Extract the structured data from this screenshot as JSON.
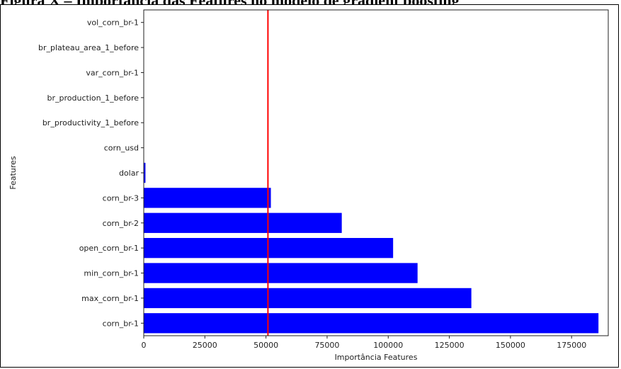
{
  "figure": {
    "caption": "Figura X – Importância das Features no modelo de gradient boosting"
  },
  "chart_data": {
    "type": "bar",
    "orientation": "horizontal",
    "title": "",
    "xlabel": "Importância Features",
    "ylabel": "Features",
    "categories": [
      "vol_corn_br-1",
      "br_plateau_area_1_before",
      "var_corn_br-1",
      "br_production_1_before",
      "br_productivity_1_before",
      "corn_usd",
      "dolar",
      "corn_br-3",
      "corn_br-2",
      "open_corn_br-1",
      "min_corn_br-1",
      "max_corn_br-1",
      "corn_br-1"
    ],
    "values": [
      0,
      0,
      0,
      0,
      0,
      0,
      700,
      52000,
      81000,
      102000,
      112000,
      134000,
      186000
    ],
    "xlim": [
      0,
      190000
    ],
    "xticks": [
      0,
      25000,
      50000,
      75000,
      100000,
      125000,
      150000,
      175000
    ],
    "xtick_labels": [
      "0",
      "25000",
      "50000",
      "75000",
      "100000",
      "125000",
      "150000",
      "175000"
    ],
    "reference_line": {
      "value": 50800,
      "color": "#ff0000"
    },
    "bar_color": "#0000ff",
    "grid": false
  }
}
